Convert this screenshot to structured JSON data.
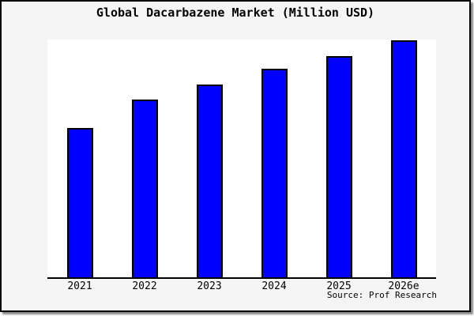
{
  "window": {
    "background_color": "#f5f5f5",
    "plot_background_color": "#ffffff",
    "border_color": "#000000",
    "shadow_color": "#8c8c8c"
  },
  "source": "Source: Prof Research",
  "chart_data": {
    "type": "bar",
    "title": "Global Dacarbazene Market (Million USD)",
    "categories": [
      "2021",
      "2022",
      "2023",
      "2024",
      "2025",
      "2026e"
    ],
    "values": [
      63,
      75,
      81.5,
      88,
      93.5,
      100
    ],
    "values_note": "no y-axis labels shown in chart; values estimated from bar heights normalized to 2026e = 100",
    "xlabel": "",
    "ylabel": "",
    "ylim": [
      0,
      100.5
    ],
    "grid": false,
    "legend": false,
    "y_axis_visible": false,
    "bar_color": "#0000ff",
    "bar_edge_color": "#000000",
    "annotations": [
      "Source: Prof Research"
    ]
  }
}
